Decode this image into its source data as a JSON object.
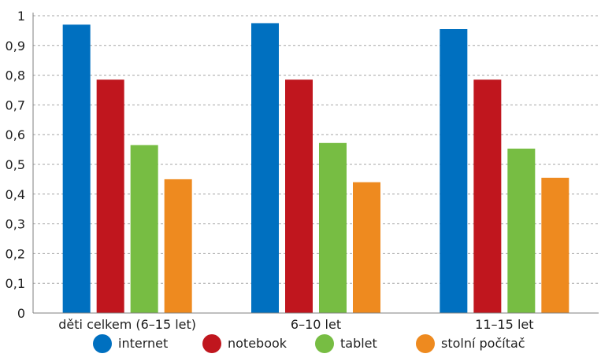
{
  "chart_data": {
    "type": "bar",
    "categories": [
      "děti celkem (6–15 let)",
      "6–10 let",
      "11–15 let"
    ],
    "series": [
      {
        "name": "internet",
        "color": "#0070C0",
        "values": [
          0.97,
          0.975,
          0.955
        ]
      },
      {
        "name": "notebook",
        "color": "#C0161E",
        "values": [
          0.785,
          0.785,
          0.785
        ]
      },
      {
        "name": "tablet",
        "color": "#77BD43",
        "values": [
          0.565,
          0.572,
          0.553
        ]
      },
      {
        "name": "stolní počítač",
        "color": "#EE8A1F",
        "values": [
          0.45,
          0.44,
          0.455
        ]
      }
    ],
    "ylim": [
      0,
      1
    ],
    "yticks": [
      0,
      0.1,
      0.2,
      0.3,
      0.4,
      0.5,
      0.6,
      0.7,
      0.8,
      0.9,
      1
    ],
    "ytick_labels": [
      "0",
      "0,1",
      "0,2",
      "0,3",
      "0,4",
      "0,5",
      "0,6",
      "0,7",
      "0,8",
      "0,9",
      "1"
    ],
    "grid": true,
    "legend_position": "bottom"
  }
}
